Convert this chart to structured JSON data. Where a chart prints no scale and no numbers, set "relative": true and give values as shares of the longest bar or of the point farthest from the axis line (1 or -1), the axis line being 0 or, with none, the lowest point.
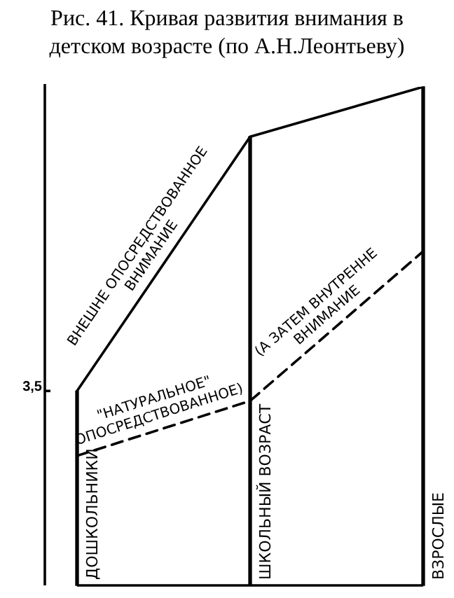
{
  "chart_data": {
    "type": "line",
    "title": "Рис. 41. Кривая развития внимания в детском возрасте (по А.Н.Леонтьеву)",
    "relative": true,
    "categories": [
      "ДОШКОЛЬНИКИ",
      "ШКОЛЬНЫЙ ВОЗРАСТ",
      "ВЗРОСЛЫЕ"
    ],
    "series": [
      {
        "color": "#000000",
        "values": [
          0.39,
          0.9,
          1
        ],
        "line_style": "solid"
      },
      {
        "color": "#000000",
        "values": [
          0.26,
          0.37,
          0.67
        ],
        "line_style": "dashed"
      },
      {
        "type": "bar",
        "color": "#000000",
        "values": [
          0.39,
          0.9,
          1
        ]
      }
    ],
    "annotations": [
      "3,5",
      "ВНЕШНЕ ОПОСРЕДСТВОВАННОЕ",
      "ВНИМАНИЕ",
      "\"НАТУРАЛЬНОЕ\"",
      "ОПОСРЕДСТВОВАННОЕ)",
      "(А ЗАТЕМ ВНУТРЕННЕ",
      "ВНИМАНИЕ"
    ],
    "legend": false,
    "marker": "none"
  }
}
